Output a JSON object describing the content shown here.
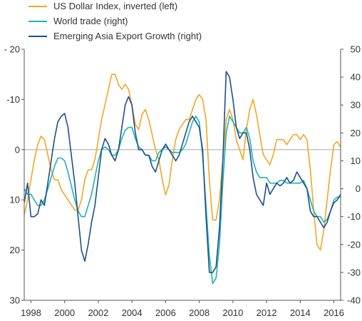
{
  "chart_data": {
    "type": "line",
    "title": "",
    "xlabel": "",
    "ylabel_left": "",
    "ylabel_right": "",
    "x_ticks": [
      "1998",
      "2000",
      "2002",
      "2004",
      "2006",
      "2008",
      "2010",
      "2012",
      "2014",
      "2016"
    ],
    "x_range": [
      1997.6,
      2016.4
    ],
    "left_axis": {
      "range": [
        -20,
        30
      ],
      "inverted": true,
      "ticks": [
        -20,
        -10,
        0,
        10,
        20,
        30
      ],
      "tick_labels": [
        "- 20",
        "-10",
        "0",
        "10",
        "20",
        "30"
      ]
    },
    "right_axis": {
      "range": [
        -40,
        50
      ],
      "ticks": [
        50,
        40,
        30,
        20,
        10,
        0,
        -10,
        -20,
        -30,
        -40
      ],
      "tick_labels": [
        "50",
        "40",
        "30",
        "20",
        "10",
        "0",
        "-10",
        "-20",
        "-30",
        "-40"
      ]
    },
    "grid": false,
    "legend_position": "top-left",
    "series": [
      {
        "name": "US Dollar Index, inverted (left)",
        "axis": "left",
        "color": "#F5A623",
        "points": [
          [
            1997.6,
            13
          ],
          [
            1997.8,
            10
          ],
          [
            1998.0,
            6
          ],
          [
            1998.2,
            2
          ],
          [
            1998.4,
            -1
          ],
          [
            1998.6,
            -2.7
          ],
          [
            1998.8,
            -2
          ],
          [
            1999.0,
            1
          ],
          [
            1999.2,
            4
          ],
          [
            1999.4,
            6
          ],
          [
            1999.6,
            6
          ],
          [
            1999.8,
            8
          ],
          [
            2000.0,
            9
          ],
          [
            2000.2,
            10
          ],
          [
            2000.4,
            11
          ],
          [
            2000.6,
            12
          ],
          [
            2000.8,
            12
          ],
          [
            2001.0,
            10
          ],
          [
            2001.2,
            6
          ],
          [
            2001.4,
            4
          ],
          [
            2001.6,
            4
          ],
          [
            2001.8,
            2
          ],
          [
            2002.0,
            -2
          ],
          [
            2002.2,
            -6
          ],
          [
            2002.4,
            -9
          ],
          [
            2002.6,
            -12
          ],
          [
            2002.8,
            -15
          ],
          [
            2003.0,
            -15
          ],
          [
            2003.2,
            -13
          ],
          [
            2003.4,
            -12
          ],
          [
            2003.6,
            -13
          ],
          [
            2003.8,
            -12
          ],
          [
            2004.0,
            -9
          ],
          [
            2004.2,
            -5
          ],
          [
            2004.4,
            -4
          ],
          [
            2004.6,
            -7
          ],
          [
            2004.8,
            -8
          ],
          [
            2005.0,
            -6
          ],
          [
            2005.2,
            -3
          ],
          [
            2005.4,
            0
          ],
          [
            2005.6,
            2
          ],
          [
            2005.8,
            6
          ],
          [
            2006.0,
            9
          ],
          [
            2006.2,
            7
          ],
          [
            2006.4,
            2
          ],
          [
            2006.6,
            -2
          ],
          [
            2006.8,
            -4
          ],
          [
            2007.0,
            -5
          ],
          [
            2007.2,
            -6
          ],
          [
            2007.4,
            -6
          ],
          [
            2007.6,
            -8
          ],
          [
            2007.8,
            -10
          ],
          [
            2008.0,
            -11
          ],
          [
            2008.2,
            -10
          ],
          [
            2008.4,
            -6
          ],
          [
            2008.6,
            6
          ],
          [
            2008.8,
            14
          ],
          [
            2009.0,
            14
          ],
          [
            2009.2,
            10
          ],
          [
            2009.4,
            2
          ],
          [
            2009.6,
            -6
          ],
          [
            2009.8,
            -8
          ],
          [
            2010.0,
            -6
          ],
          [
            2010.2,
            -2
          ],
          [
            2010.4,
            0
          ],
          [
            2010.6,
            2
          ],
          [
            2010.8,
            -4
          ],
          [
            2011.0,
            -8
          ],
          [
            2011.2,
            -10
          ],
          [
            2011.4,
            -7
          ],
          [
            2011.6,
            -3
          ],
          [
            2011.8,
            1
          ],
          [
            2012.0,
            2
          ],
          [
            2012.2,
            3
          ],
          [
            2012.4,
            1
          ],
          [
            2012.6,
            -2
          ],
          [
            2012.8,
            -2
          ],
          [
            2013.0,
            -2
          ],
          [
            2013.2,
            -1
          ],
          [
            2013.4,
            -2
          ],
          [
            2013.6,
            -3
          ],
          [
            2013.8,
            -3
          ],
          [
            2014.0,
            -2
          ],
          [
            2014.2,
            -3
          ],
          [
            2014.4,
            -2
          ],
          [
            2014.6,
            4
          ],
          [
            2014.8,
            12
          ],
          [
            2015.0,
            19
          ],
          [
            2015.2,
            20
          ],
          [
            2015.4,
            16
          ],
          [
            2015.6,
            10
          ],
          [
            2015.8,
            4
          ],
          [
            2016.0,
            -1
          ],
          [
            2016.2,
            -1.6
          ],
          [
            2016.4,
            -0.5
          ]
        ]
      },
      {
        "name": "World trade (right)",
        "axis": "right",
        "color": "#1FB3B3",
        "points": [
          [
            1997.6,
            0
          ],
          [
            1997.8,
            -2
          ],
          [
            1998.0,
            -2
          ],
          [
            1998.2,
            -4
          ],
          [
            1998.4,
            -6
          ],
          [
            1998.6,
            -6
          ],
          [
            1998.8,
            -4
          ],
          [
            1999.0,
            0
          ],
          [
            1999.2,
            4
          ],
          [
            1999.4,
            8
          ],
          [
            1999.6,
            11
          ],
          [
            1999.8,
            11
          ],
          [
            2000.0,
            10
          ],
          [
            2000.2,
            6
          ],
          [
            2000.4,
            1
          ],
          [
            2000.6,
            -4
          ],
          [
            2000.8,
            -8
          ],
          [
            2001.0,
            -10
          ],
          [
            2001.2,
            -10
          ],
          [
            2001.4,
            -6
          ],
          [
            2001.6,
            -2
          ],
          [
            2001.8,
            4
          ],
          [
            2002.0,
            10
          ],
          [
            2002.2,
            14
          ],
          [
            2002.4,
            15
          ],
          [
            2002.6,
            14
          ],
          [
            2002.8,
            12
          ],
          [
            2003.0,
            12
          ],
          [
            2003.2,
            14
          ],
          [
            2003.4,
            18
          ],
          [
            2003.6,
            21
          ],
          [
            2003.8,
            22
          ],
          [
            2004.0,
            22
          ],
          [
            2004.2,
            18
          ],
          [
            2004.4,
            15
          ],
          [
            2004.6,
            14
          ],
          [
            2004.8,
            12
          ],
          [
            2005.0,
            12
          ],
          [
            2005.2,
            10
          ],
          [
            2005.4,
            10
          ],
          [
            2005.6,
            13
          ],
          [
            2005.8,
            14
          ],
          [
            2006.0,
            15
          ],
          [
            2006.2,
            14
          ],
          [
            2006.4,
            13
          ],
          [
            2006.6,
            13
          ],
          [
            2006.8,
            13
          ],
          [
            2007.0,
            14
          ],
          [
            2007.2,
            16
          ],
          [
            2007.4,
            20
          ],
          [
            2007.6,
            24
          ],
          [
            2007.8,
            26
          ],
          [
            2008.0,
            24
          ],
          [
            2008.2,
            12
          ],
          [
            2008.4,
            -6
          ],
          [
            2008.6,
            -24
          ],
          [
            2008.8,
            -34
          ],
          [
            2009.0,
            -32
          ],
          [
            2009.2,
            -20
          ],
          [
            2009.4,
            2
          ],
          [
            2009.6,
            20
          ],
          [
            2009.8,
            26
          ],
          [
            2010.0,
            24
          ],
          [
            2010.2,
            22
          ],
          [
            2010.4,
            20
          ],
          [
            2010.6,
            20
          ],
          [
            2010.8,
            22
          ],
          [
            2011.0,
            18
          ],
          [
            2011.2,
            10
          ],
          [
            2011.4,
            6
          ],
          [
            2011.6,
            4
          ],
          [
            2011.8,
            4
          ],
          [
            2012.0,
            4
          ],
          [
            2012.2,
            2
          ],
          [
            2012.4,
            2
          ],
          [
            2012.6,
            2
          ],
          [
            2012.8,
            3
          ],
          [
            2013.0,
            3
          ],
          [
            2013.2,
            2
          ],
          [
            2013.4,
            2
          ],
          [
            2013.6,
            2
          ],
          [
            2013.8,
            2
          ],
          [
            2014.0,
            2
          ],
          [
            2014.2,
            3
          ],
          [
            2014.4,
            0
          ],
          [
            2014.6,
            -4
          ],
          [
            2014.8,
            -8
          ],
          [
            2015.0,
            -10
          ],
          [
            2015.2,
            -10
          ],
          [
            2015.4,
            -12
          ],
          [
            2015.6,
            -11
          ],
          [
            2015.8,
            -8
          ],
          [
            2016.0,
            -4
          ],
          [
            2016.2,
            -3
          ],
          [
            2016.4,
            -3
          ]
        ]
      },
      {
        "name": "Emerging Asia Export Growth (right)",
        "axis": "right",
        "color": "#1B4F8F",
        "points": [
          [
            1997.6,
            -5
          ],
          [
            1997.8,
            2
          ],
          [
            1998.0,
            -10
          ],
          [
            1998.2,
            -10
          ],
          [
            1998.4,
            -9
          ],
          [
            1998.6,
            -4
          ],
          [
            1998.8,
            -6
          ],
          [
            1999.0,
            2
          ],
          [
            1999.2,
            10
          ],
          [
            1999.4,
            18
          ],
          [
            1999.6,
            24
          ],
          [
            1999.8,
            26
          ],
          [
            2000.0,
            27
          ],
          [
            2000.2,
            22
          ],
          [
            2000.4,
            12
          ],
          [
            2000.6,
            2
          ],
          [
            2000.8,
            -10
          ],
          [
            2001.0,
            -22
          ],
          [
            2001.2,
            -26
          ],
          [
            2001.4,
            -20
          ],
          [
            2001.6,
            -12
          ],
          [
            2001.8,
            -6
          ],
          [
            2002.0,
            4
          ],
          [
            2002.2,
            14
          ],
          [
            2002.4,
            18
          ],
          [
            2002.6,
            16
          ],
          [
            2002.8,
            12
          ],
          [
            2003.0,
            10
          ],
          [
            2003.2,
            14
          ],
          [
            2003.4,
            22
          ],
          [
            2003.6,
            30
          ],
          [
            2003.8,
            33
          ],
          [
            2004.0,
            30
          ],
          [
            2004.2,
            20
          ],
          [
            2004.4,
            14
          ],
          [
            2004.6,
            14
          ],
          [
            2004.8,
            12
          ],
          [
            2005.0,
            12
          ],
          [
            2005.2,
            8
          ],
          [
            2005.4,
            6
          ],
          [
            2005.6,
            10
          ],
          [
            2005.8,
            14
          ],
          [
            2006.0,
            16
          ],
          [
            2006.2,
            14
          ],
          [
            2006.4,
            12
          ],
          [
            2006.6,
            10
          ],
          [
            2006.8,
            12
          ],
          [
            2007.0,
            16
          ],
          [
            2007.2,
            20
          ],
          [
            2007.4,
            24
          ],
          [
            2007.6,
            26
          ],
          [
            2007.8,
            24
          ],
          [
            2008.0,
            22
          ],
          [
            2008.2,
            14
          ],
          [
            2008.4,
            -10
          ],
          [
            2008.6,
            -30
          ],
          [
            2008.8,
            -30
          ],
          [
            2009.0,
            -28
          ],
          [
            2009.2,
            -14
          ],
          [
            2009.4,
            10
          ],
          [
            2009.6,
            42
          ],
          [
            2009.8,
            40
          ],
          [
            2010.0,
            32
          ],
          [
            2010.2,
            22
          ],
          [
            2010.4,
            18
          ],
          [
            2010.6,
            20
          ],
          [
            2010.8,
            20
          ],
          [
            2011.0,
            14
          ],
          [
            2011.2,
            4
          ],
          [
            2011.4,
            -2
          ],
          [
            2011.6,
            -4
          ],
          [
            2011.8,
            -6
          ],
          [
            2012.0,
            2
          ],
          [
            2012.2,
            -2
          ],
          [
            2012.4,
            0
          ],
          [
            2012.6,
            2
          ],
          [
            2012.8,
            1
          ],
          [
            2013.0,
            2
          ],
          [
            2013.2,
            4
          ],
          [
            2013.4,
            2
          ],
          [
            2013.6,
            3
          ],
          [
            2013.8,
            6
          ],
          [
            2014.0,
            4
          ],
          [
            2014.2,
            2
          ],
          [
            2014.4,
            0
          ],
          [
            2014.6,
            -8
          ],
          [
            2014.8,
            -10
          ],
          [
            2015.0,
            -10
          ],
          [
            2015.2,
            -12
          ],
          [
            2015.4,
            -14
          ],
          [
            2015.6,
            -12
          ],
          [
            2015.8,
            -8
          ],
          [
            2016.0,
            -5
          ],
          [
            2016.2,
            -4
          ],
          [
            2016.4,
            -2
          ]
        ]
      }
    ]
  }
}
